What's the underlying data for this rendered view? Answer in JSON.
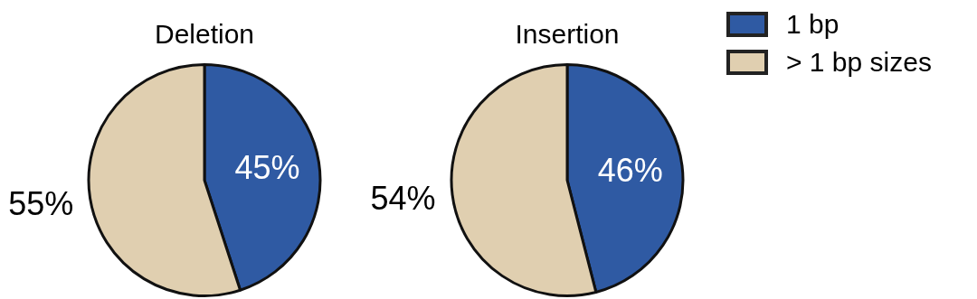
{
  "chart_data": [
    {
      "type": "pie",
      "title": "Deletion",
      "categories": [
        null,
        null
      ],
      "values": [
        45,
        55
      ],
      "colors": [
        "#2f5aa3",
        "#e0cfb0"
      ],
      "value_labels": [
        "45%",
        "55%"
      ]
    },
    {
      "type": "pie",
      "title": "Insertion",
      "categories": [
        "1 bp",
        "> 1 bp sizes"
      ],
      "values": [
        46,
        54
      ],
      "colors": [
        "#2f5aa3",
        "#e0cfb0"
      ],
      "value_labels": [
        "46%",
        "54%"
      ],
      "legend": "top right"
    }
  ]
}
